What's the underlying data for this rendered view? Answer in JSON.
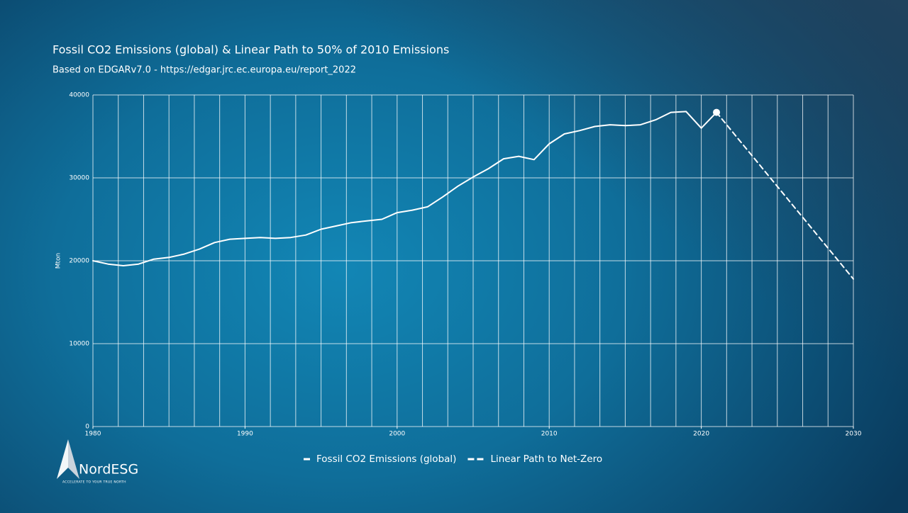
{
  "chart_data": {
    "type": "line",
    "title": "Fossil CO2 Emissions (global) & Linear Path to 50% of 2010 Emissions",
    "subtitle": "Based on EDGARv7.0 - https://edgar.jrc.ec.europa.eu/report_2022",
    "y_label": "Mton",
    "xlim": [
      1980,
      2030
    ],
    "xticks": [
      1980,
      1990,
      2000,
      2010,
      2020,
      2030
    ],
    "ylim": [
      0,
      40000
    ],
    "yticks": [
      0,
      10000,
      20000,
      30000,
      40000
    ],
    "grid": true,
    "legend": "bottom",
    "series": [
      {
        "name": "Fossil CO2 Emissions (global)",
        "color": "#ffffff",
        "dash": false,
        "x": [
          1980,
          1981,
          1982,
          1983,
          1984,
          1985,
          1986,
          1987,
          1988,
          1989,
          1990,
          1991,
          1992,
          1993,
          1994,
          1995,
          1996,
          1997,
          1998,
          1999,
          2000,
          2001,
          2002,
          2003,
          2004,
          2005,
          2006,
          2007,
          2008,
          2009,
          2010,
          2011,
          2012,
          2013,
          2014,
          2015,
          2016,
          2017,
          2018,
          2019,
          2020,
          2021
        ],
        "values": [
          20000,
          19600,
          19400,
          19600,
          20200,
          20400,
          20800,
          21400,
          22200,
          22600,
          22700,
          22800,
          22700,
          22800,
          23100,
          23800,
          24200,
          24600,
          24800,
          25000,
          25800,
          26100,
          26500,
          27700,
          29000,
          30100,
          31100,
          32300,
          32600,
          32200,
          34100,
          35300,
          35700,
          36200,
          36400,
          36300,
          36400,
          37000,
          37900,
          38000,
          36000,
          37900
        ]
      },
      {
        "name": "Linear Path to Net-Zero",
        "color": "#ffffff",
        "dash": true,
        "x": [
          2021,
          2030
        ],
        "values": [
          37900,
          17800
        ]
      }
    ]
  },
  "logo": {
    "name": "NordESG",
    "tagline": "ACCELERATE TO YOUR TRUE NORTH"
  }
}
